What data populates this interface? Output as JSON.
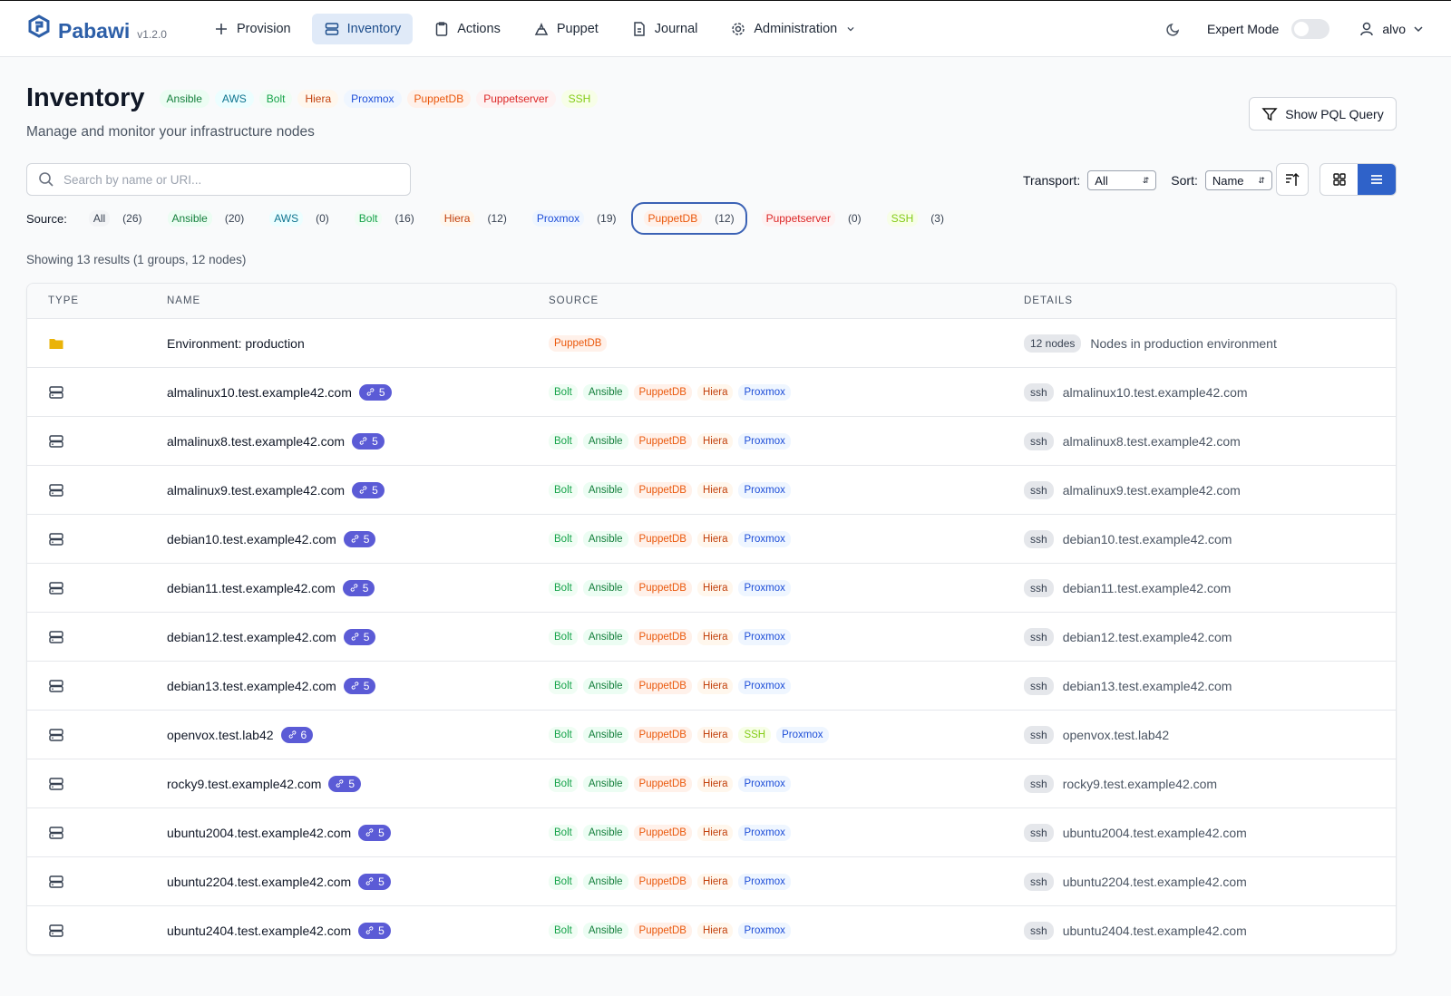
{
  "nav": {
    "brand": "Pabawi",
    "version": "v1.2.0",
    "items": [
      "Provision",
      "Inventory",
      "Actions",
      "Puppet",
      "Journal",
      "Administration"
    ],
    "active_item": "Inventory",
    "expert_mode": "Expert Mode",
    "user": "alvo"
  },
  "header": {
    "title": "Inventory",
    "sources": [
      {
        "name": "Ansible",
        "color": "#15803d",
        "bg": "#ecfdf3"
      },
      {
        "name": "AWS",
        "color": "#0e7490",
        "bg": "#ecfeff"
      },
      {
        "name": "Bolt",
        "color": "#16a34a",
        "bg": "#f0fdf4"
      },
      {
        "name": "Hiera",
        "color": "#c2410c",
        "bg": "#fff7ed"
      },
      {
        "name": "Proxmox",
        "color": "#1d4ed8",
        "bg": "#eff6ff"
      },
      {
        "name": "PuppetDB",
        "color": "#ea580c",
        "bg": "#fff1ea"
      },
      {
        "name": "Puppetserver",
        "color": "#dc2626",
        "bg": "#fef2f2"
      },
      {
        "name": "SSH",
        "color": "#84cc16",
        "bg": "#f7fee7"
      }
    ],
    "subtitle": "Manage and monitor your infrastructure nodes",
    "pql_button": "Show PQL Query"
  },
  "controls": {
    "search_placeholder": "Search by name or URI...",
    "transport_label": "Transport:",
    "transport_value": "All",
    "sort_label": "Sort:",
    "sort_value": "Name"
  },
  "source_filter": {
    "label": "Source:",
    "selected": "PuppetDB",
    "options": [
      {
        "name": "All",
        "count": "(26)"
      },
      {
        "name": "Ansible",
        "count": "(20)"
      },
      {
        "name": "AWS",
        "count": "(0)"
      },
      {
        "name": "Bolt",
        "count": "(16)"
      },
      {
        "name": "Hiera",
        "count": "(12)"
      },
      {
        "name": "Proxmox",
        "count": "(19)"
      },
      {
        "name": "PuppetDB",
        "count": "(12)"
      },
      {
        "name": "Puppetserver",
        "count": "(0)"
      },
      {
        "name": "SSH",
        "count": "(3)"
      }
    ]
  },
  "results_summary": "Showing 13 results (1 groups, 12 nodes)",
  "table": {
    "columns": [
      "TYPE",
      "NAME",
      "SOURCE",
      "DETAILS"
    ],
    "group_row": {
      "name": "Environment: production",
      "sources": [
        "PuppetDB"
      ],
      "count_badge": "12 nodes",
      "description": "Nodes in production environment"
    },
    "node_rows": [
      {
        "name": "almalinux10.test.example42.com",
        "links": "5",
        "sources": [
          "Bolt",
          "Ansible",
          "PuppetDB",
          "Hiera",
          "Proxmox"
        ],
        "transport": "ssh",
        "uri": "almalinux10.test.example42.com"
      },
      {
        "name": "almalinux8.test.example42.com",
        "links": "5",
        "sources": [
          "Bolt",
          "Ansible",
          "PuppetDB",
          "Hiera",
          "Proxmox"
        ],
        "transport": "ssh",
        "uri": "almalinux8.test.example42.com"
      },
      {
        "name": "almalinux9.test.example42.com",
        "links": "5",
        "sources": [
          "Bolt",
          "Ansible",
          "PuppetDB",
          "Hiera",
          "Proxmox"
        ],
        "transport": "ssh",
        "uri": "almalinux9.test.example42.com"
      },
      {
        "name": "debian10.test.example42.com",
        "links": "5",
        "sources": [
          "Bolt",
          "Ansible",
          "PuppetDB",
          "Hiera",
          "Proxmox"
        ],
        "transport": "ssh",
        "uri": "debian10.test.example42.com"
      },
      {
        "name": "debian11.test.example42.com",
        "links": "5",
        "sources": [
          "Bolt",
          "Ansible",
          "PuppetDB",
          "Hiera",
          "Proxmox"
        ],
        "transport": "ssh",
        "uri": "debian11.test.example42.com"
      },
      {
        "name": "debian12.test.example42.com",
        "links": "5",
        "sources": [
          "Bolt",
          "Ansible",
          "PuppetDB",
          "Hiera",
          "Proxmox"
        ],
        "transport": "ssh",
        "uri": "debian12.test.example42.com"
      },
      {
        "name": "debian13.test.example42.com",
        "links": "5",
        "sources": [
          "Bolt",
          "Ansible",
          "PuppetDB",
          "Hiera",
          "Proxmox"
        ],
        "transport": "ssh",
        "uri": "debian13.test.example42.com"
      },
      {
        "name": "openvox.test.lab42",
        "links": "6",
        "sources": [
          "Bolt",
          "Ansible",
          "PuppetDB",
          "Hiera",
          "SSH",
          "Proxmox"
        ],
        "transport": "ssh",
        "uri": "openvox.test.lab42"
      },
      {
        "name": "rocky9.test.example42.com",
        "links": "5",
        "sources": [
          "Bolt",
          "Ansible",
          "PuppetDB",
          "Hiera",
          "Proxmox"
        ],
        "transport": "ssh",
        "uri": "rocky9.test.example42.com"
      },
      {
        "name": "ubuntu2004.test.example42.com",
        "links": "5",
        "sources": [
          "Bolt",
          "Ansible",
          "PuppetDB",
          "Hiera",
          "Proxmox"
        ],
        "transport": "ssh",
        "uri": "ubuntu2004.test.example42.com"
      },
      {
        "name": "ubuntu2204.test.example42.com",
        "links": "5",
        "sources": [
          "Bolt",
          "Ansible",
          "PuppetDB",
          "Hiera",
          "Proxmox"
        ],
        "transport": "ssh",
        "uri": "ubuntu2204.test.example42.com"
      },
      {
        "name": "ubuntu2404.test.example42.com",
        "links": "5",
        "sources": [
          "Bolt",
          "Ansible",
          "PuppetDB",
          "Hiera",
          "Proxmox"
        ],
        "transport": "ssh",
        "uri": "ubuntu2404.test.example42.com"
      }
    ]
  }
}
